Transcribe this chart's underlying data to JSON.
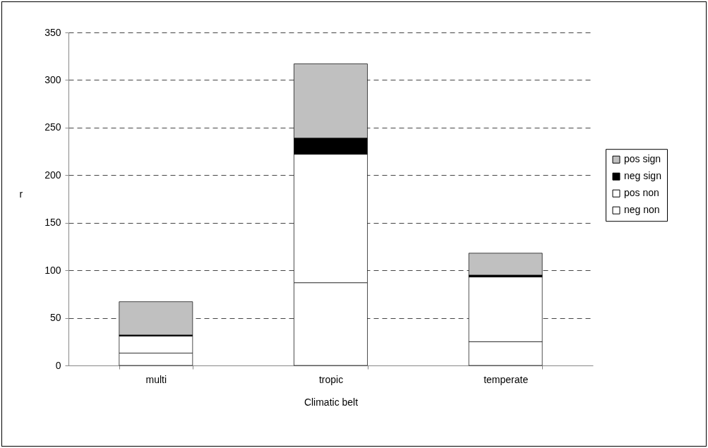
{
  "chart_data": {
    "type": "bar",
    "stacked": true,
    "xlabel": "Climatic belt",
    "ylabel": "r",
    "categories": [
      "multi",
      "tropic",
      "temperate"
    ],
    "series": [
      {
        "name": "neg non",
        "color": "#ffffff",
        "values": [
          13,
          87,
          25
        ]
      },
      {
        "name": "pos non",
        "color": "#ffffff",
        "values": [
          18,
          135,
          68
        ]
      },
      {
        "name": "neg sign",
        "color": "#000000",
        "values": [
          1,
          17,
          2
        ]
      },
      {
        "name": "pos sign",
        "color": "#c0c0c0",
        "values": [
          35,
          78,
          23
        ]
      }
    ],
    "ylim": [
      0,
      350
    ],
    "yticks": [
      0,
      50,
      100,
      150,
      200,
      250,
      300,
      350
    ],
    "grid": "y",
    "legend": "right"
  }
}
